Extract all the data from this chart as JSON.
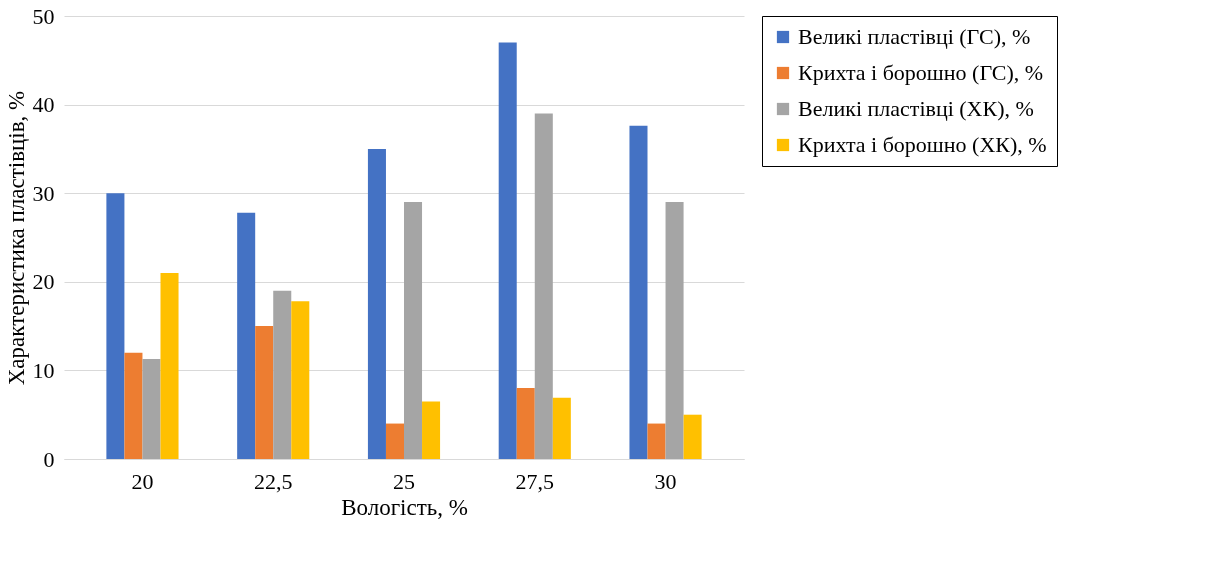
{
  "chart_data": {
    "type": "bar",
    "xlabel": "Вологість, %",
    "ylabel": "Характеристика пластівців, %",
    "categories": [
      "20",
      "22,5",
      "25",
      "27,5",
      "30"
    ],
    "series": [
      {
        "name": "Великі пластівці (ГС), %",
        "color": "#4472c4",
        "values": [
          30,
          27.8,
          35,
          47,
          37.6
        ]
      },
      {
        "name": "Крихта і борошно (ГС), %",
        "color": "#ed7d31",
        "values": [
          12,
          15,
          4,
          8,
          4
        ]
      },
      {
        "name": "Великі пластівці (ХК), %",
        "color": "#a5a5a5",
        "values": [
          11.3,
          19,
          29,
          39,
          29
        ]
      },
      {
        "name": "Крихта і борошно (ХК), %",
        "color": "#ffc000",
        "values": [
          21,
          17.8,
          6.5,
          6.9,
          5
        ]
      }
    ],
    "ylim": [
      0,
      50
    ],
    "yticks": [
      0,
      10,
      20,
      30,
      40,
      50
    ],
    "grid": "y",
    "legend": "right"
  }
}
